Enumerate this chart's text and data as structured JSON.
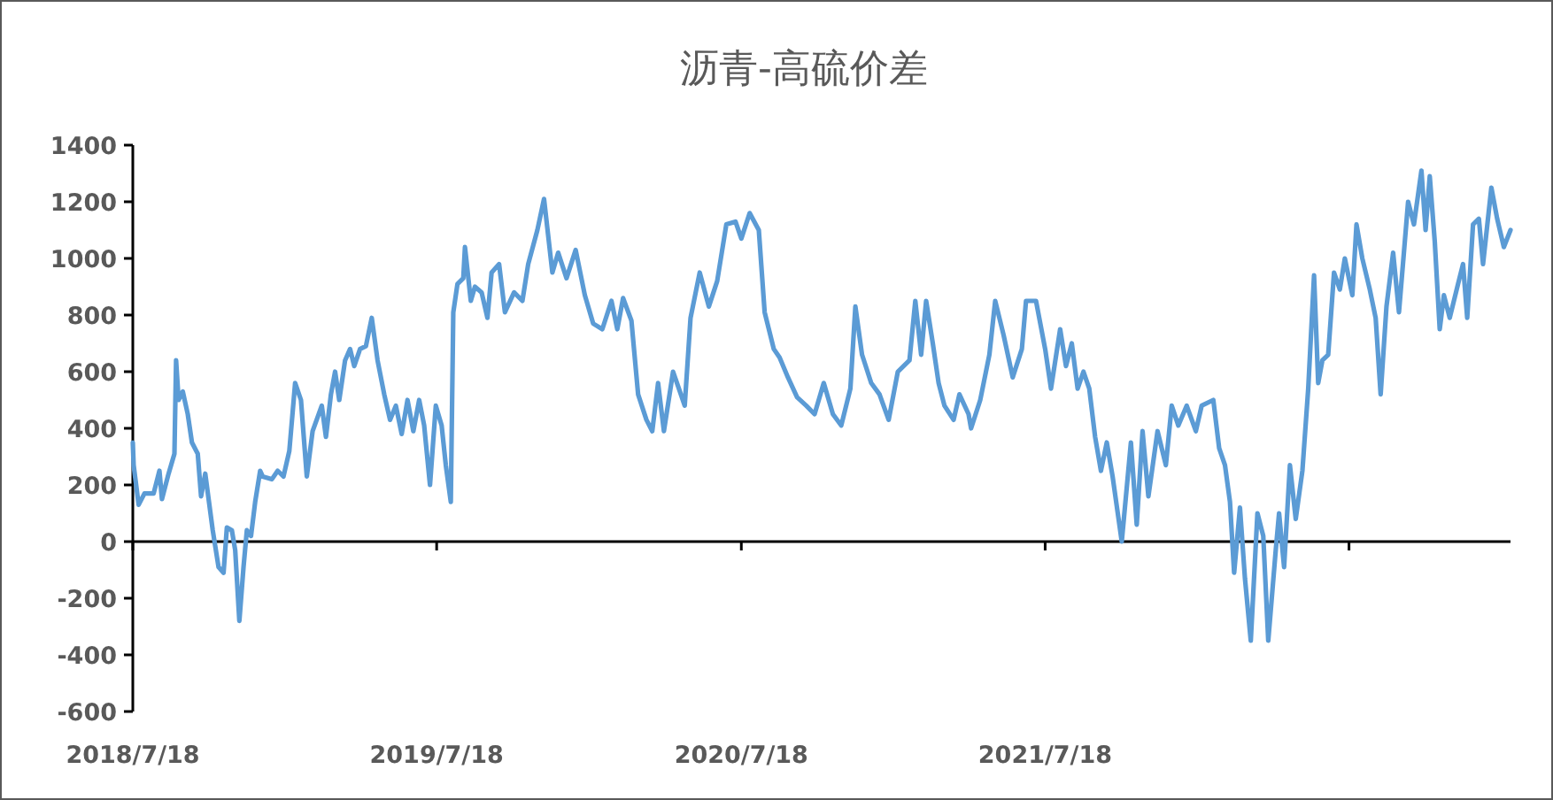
{
  "chart_data": {
    "type": "line",
    "title": "沥青-高硫价差",
    "color": "#5b9bd5",
    "legend": false,
    "marker": "none",
    "line_style": "solid",
    "ylim": [
      -600,
      1400
    ],
    "yticks": [
      -600,
      -400,
      -200,
      0,
      200,
      400,
      600,
      800,
      1000,
      1200,
      1400
    ],
    "xlim": [
      "2018-07-18",
      "2023-01-28"
    ],
    "xticks": [
      {
        "value": "2018-07-18",
        "label": "2018/7/18"
      },
      {
        "value": "2019-07-18",
        "label": "2019/7/18"
      },
      {
        "value": "2020-07-18",
        "label": "2020/7/18"
      },
      {
        "value": "2021-07-18",
        "label": "2021/7/18"
      },
      {
        "value": "2022-07-18",
        "label": null
      }
    ],
    "x": [
      "2018-07-18",
      "2018-07-19",
      "2018-07-25",
      "2018-08-01",
      "2018-08-12",
      "2018-08-19",
      "2018-08-22",
      "2018-08-30",
      "2018-09-06",
      "2018-09-08",
      "2018-09-11",
      "2018-09-16",
      "2018-09-22",
      "2018-09-27",
      "2018-10-04",
      "2018-10-08",
      "2018-10-13",
      "2018-10-22",
      "2018-10-29",
      "2018-11-04",
      "2018-11-08",
      "2018-11-14",
      "2018-11-18",
      "2018-11-23",
      "2018-11-28",
      "2018-12-02",
      "2018-12-07",
      "2018-12-12",
      "2018-12-18",
      "2018-12-21",
      "2019-01-01",
      "2019-01-08",
      "2019-01-15",
      "2019-01-22",
      "2019-01-29",
      "2019-02-05",
      "2019-02-12",
      "2019-02-19",
      "2019-03-02",
      "2019-03-07",
      "2019-03-13",
      "2019-03-18",
      "2019-03-23",
      "2019-03-30",
      "2019-04-05",
      "2019-04-10",
      "2019-04-17",
      "2019-04-24",
      "2019-05-01",
      "2019-05-08",
      "2019-05-16",
      "2019-05-23",
      "2019-05-30",
      "2019-06-06",
      "2019-06-13",
      "2019-06-20",
      "2019-06-27",
      "2019-07-03",
      "2019-07-10",
      "2019-07-17",
      "2019-07-24",
      "2019-07-29",
      "2019-08-04",
      "2019-08-07",
      "2019-08-12",
      "2019-08-19",
      "2019-08-21",
      "2019-08-28",
      "2019-09-02",
      "2019-09-10",
      "2019-09-17",
      "2019-09-22",
      "2019-10-01",
      "2019-10-08",
      "2019-10-19",
      "2019-10-29",
      "2019-11-05",
      "2019-11-16",
      "2019-11-24",
      "2019-12-04",
      "2019-12-11",
      "2019-12-21",
      "2020-01-01",
      "2020-01-12",
      "2020-01-22",
      "2020-02-02",
      "2020-02-13",
      "2020-02-20",
      "2020-02-27",
      "2020-03-08",
      "2020-03-16",
      "2020-03-26",
      "2020-04-02",
      "2020-04-09",
      "2020-04-16",
      "2020-04-27",
      "2020-05-04",
      "2020-05-11",
      "2020-05-18",
      "2020-05-29",
      "2020-06-09",
      "2020-06-19",
      "2020-06-30",
      "2020-07-11",
      "2020-07-18",
      "2020-07-28",
      "2020-08-08",
      "2020-08-15",
      "2020-08-26",
      "2020-09-02",
      "2020-09-12",
      "2020-09-23",
      "2020-10-04",
      "2020-10-14",
      "2020-10-25",
      "2020-11-05",
      "2020-11-15",
      "2020-11-26",
      "2020-12-02",
      "2020-12-10",
      "2020-12-21",
      "2020-12-31",
      "2021-01-11",
      "2021-01-22",
      "2021-02-05",
      "2021-02-12",
      "2021-02-19",
      "2021-02-25",
      "2021-03-05",
      "2021-03-12",
      "2021-03-19",
      "2021-03-30",
      "2021-04-06",
      "2021-04-17",
      "2021-04-20",
      "2021-05-01",
      "2021-05-12",
      "2021-05-19",
      "2021-05-29",
      "2021-06-09",
      "2021-06-20",
      "2021-06-25",
      "2021-07-07",
      "2021-07-18",
      "2021-07-25",
      "2021-08-05",
      "2021-08-12",
      "2021-08-19",
      "2021-08-26",
      "2021-09-02",
      "2021-09-09",
      "2021-09-16",
      "2021-09-23",
      "2021-09-30",
      "2021-10-07",
      "2021-10-18",
      "2021-10-29",
      "2021-11-05",
      "2021-11-12",
      "2021-11-19",
      "2021-11-30",
      "2021-12-10",
      "2021-12-17",
      "2021-12-25",
      "2022-01-04",
      "2022-01-15",
      "2022-01-22",
      "2022-02-05",
      "2022-02-12",
      "2022-02-19",
      "2022-02-25",
      "2022-03-02",
      "2022-03-09",
      "2022-03-15",
      "2022-03-22",
      "2022-03-30",
      "2022-04-06",
      "2022-04-12",
      "2022-04-21",
      "2022-04-25",
      "2022-05-01",
      "2022-05-08",
      "2022-05-15",
      "2022-05-23",
      "2022-05-30",
      "2022-06-06",
      "2022-06-11",
      "2022-06-16",
      "2022-06-23",
      "2022-06-30",
      "2022-07-07",
      "2022-07-13",
      "2022-07-22",
      "2022-07-27",
      "2022-08-03",
      "2022-08-12",
      "2022-08-19",
      "2022-08-25",
      "2022-09-01",
      "2022-09-09",
      "2022-09-16",
      "2022-09-27",
      "2022-10-04",
      "2022-10-13",
      "2022-10-18",
      "2022-10-23",
      "2022-10-29",
      "2022-11-04",
      "2022-11-09",
      "2022-11-16",
      "2022-11-26",
      "2022-12-02",
      "2022-12-07",
      "2022-12-14",
      "2022-12-21",
      "2022-12-26",
      "2023-01-05",
      "2023-01-12",
      "2023-01-20",
      "2023-01-28"
    ],
    "values": [
      350,
      270,
      130,
      170,
      170,
      250,
      150,
      240,
      310,
      640,
      500,
      530,
      450,
      350,
      310,
      160,
      240,
      40,
      -90,
      -110,
      50,
      40,
      -30,
      -280,
      -90,
      40,
      20,
      140,
      250,
      230,
      220,
      250,
      230,
      320,
      560,
      500,
      230,
      390,
      480,
      370,
      520,
      600,
      500,
      640,
      680,
      620,
      680,
      690,
      790,
      640,
      520,
      430,
      480,
      380,
      500,
      390,
      500,
      410,
      200,
      480,
      410,
      270,
      140,
      810,
      910,
      930,
      1040,
      850,
      900,
      880,
      790,
      950,
      980,
      810,
      880,
      850,
      980,
      1100,
      1210,
      950,
      1020,
      930,
      1030,
      870,
      770,
      750,
      850,
      750,
      860,
      780,
      520,
      430,
      390,
      560,
      390,
      600,
      540,
      480,
      790,
      950,
      830,
      920,
      1120,
      1130,
      1070,
      1160,
      1100,
      810,
      680,
      650,
      580,
      510,
      480,
      450,
      560,
      450,
      410,
      540,
      830,
      660,
      560,
      520,
      430,
      600,
      640,
      850,
      660,
      850,
      700,
      560,
      480,
      430,
      520,
      450,
      400,
      500,
      660,
      850,
      730,
      580,
      680,
      850,
      850,
      680,
      540,
      750,
      620,
      700,
      540,
      600,
      540,
      370,
      250,
      350,
      230,
      0,
      350,
      60,
      390,
      160,
      390,
      270,
      480,
      410,
      480,
      390,
      480,
      500,
      330,
      270,
      140,
      -110,
      120,
      -130,
      -350,
      100,
      20,
      -350,
      -30,
      100,
      -90,
      270,
      80,
      250,
      540,
      940,
      560,
      640,
      660,
      950,
      890,
      1000,
      870,
      1120,
      1000,
      890,
      790,
      520,
      830,
      1020,
      810,
      1200,
      1120,
      1310,
      1100,
      1290,
      1060,
      750,
      870,
      790,
      910,
      980,
      790,
      1120,
      1140,
      980,
      1250,
      1140,
      1040,
      1100
    ]
  }
}
